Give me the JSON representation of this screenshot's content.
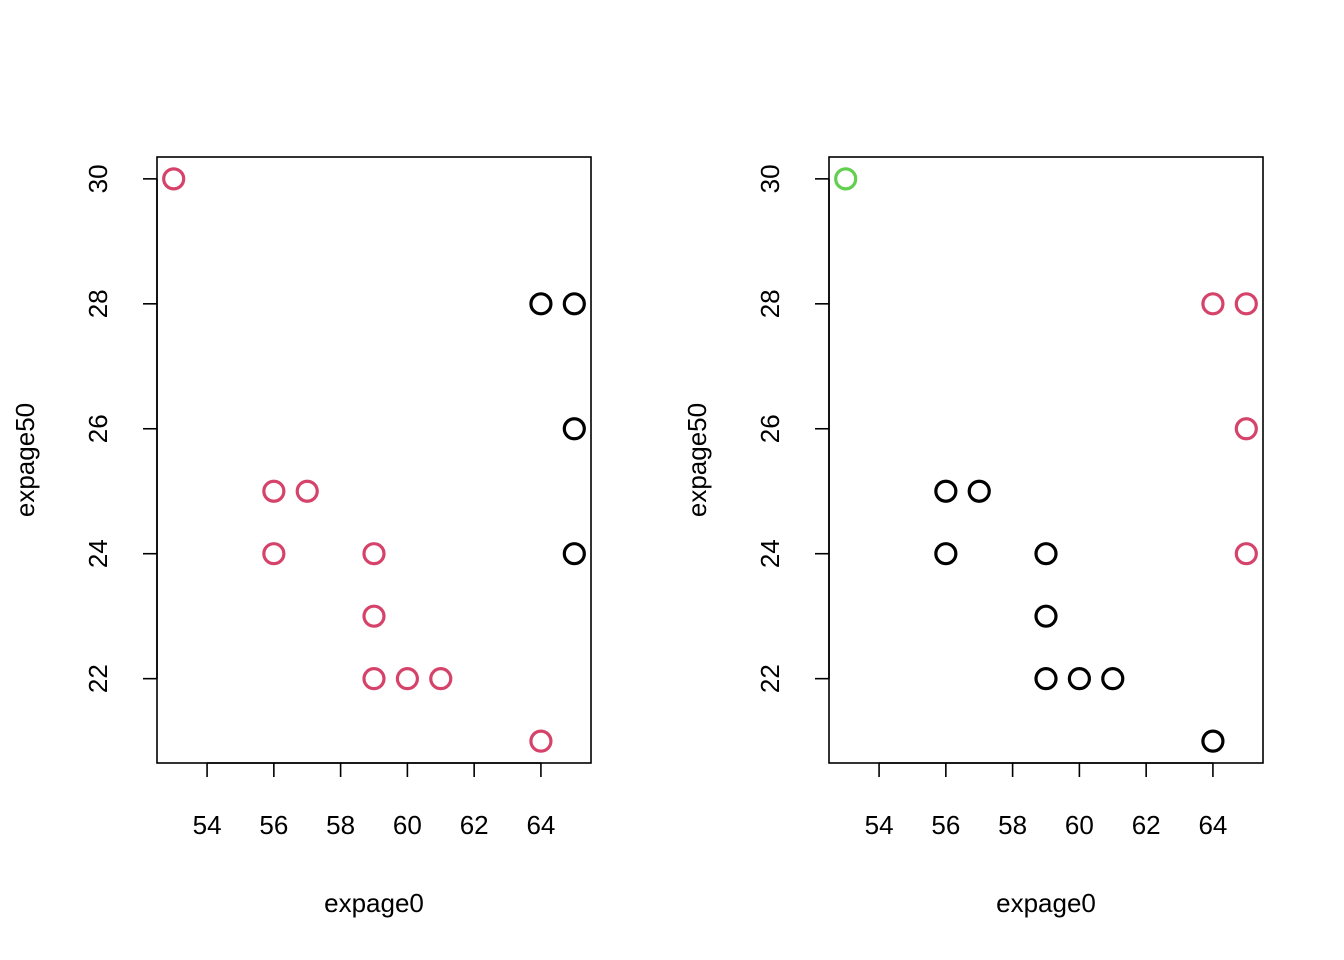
{
  "chart_data": [
    {
      "type": "scatter",
      "title": "",
      "xlabel": "expage0",
      "ylabel": "expage50",
      "xlim": [
        52.5,
        65.5
      ],
      "ylim": [
        20.65,
        30.35
      ],
      "xticks": [
        54,
        56,
        58,
        60,
        62,
        64
      ],
      "yticks": [
        22,
        24,
        26,
        28,
        30
      ],
      "xtick_labels": [
        "54",
        "56",
        "58",
        "60",
        "62",
        "64"
      ],
      "ytick_labels": [
        "22",
        "24",
        "26",
        "28",
        "30"
      ],
      "points": [
        {
          "x": 53,
          "y": 30,
          "color": "#d6436a"
        },
        {
          "x": 64,
          "y": 28,
          "color": "#000000"
        },
        {
          "x": 65,
          "y": 28,
          "color": "#000000"
        },
        {
          "x": 65,
          "y": 26,
          "color": "#000000"
        },
        {
          "x": 56,
          "y": 25,
          "color": "#d6436a"
        },
        {
          "x": 57,
          "y": 25,
          "color": "#d6436a"
        },
        {
          "x": 56,
          "y": 24,
          "color": "#d6436a"
        },
        {
          "x": 59,
          "y": 24,
          "color": "#d6436a"
        },
        {
          "x": 65,
          "y": 24,
          "color": "#000000"
        },
        {
          "x": 59,
          "y": 23,
          "color": "#d6436a"
        },
        {
          "x": 59,
          "y": 22,
          "color": "#d6436a"
        },
        {
          "x": 60,
          "y": 22,
          "color": "#d6436a"
        },
        {
          "x": 61,
          "y": 22,
          "color": "#d6436a"
        },
        {
          "x": 64,
          "y": 21,
          "color": "#d6436a"
        }
      ]
    },
    {
      "type": "scatter",
      "title": "",
      "xlabel": "expage0",
      "ylabel": "expage50",
      "xlim": [
        52.5,
        65.5
      ],
      "ylim": [
        20.65,
        30.35
      ],
      "xticks": [
        54,
        56,
        58,
        60,
        62,
        64
      ],
      "yticks": [
        22,
        24,
        26,
        28,
        30
      ],
      "xtick_labels": [
        "54",
        "56",
        "58",
        "60",
        "62",
        "64"
      ],
      "ytick_labels": [
        "22",
        "24",
        "26",
        "28",
        "30"
      ],
      "points": [
        {
          "x": 53,
          "y": 30,
          "color": "#61d04f"
        },
        {
          "x": 64,
          "y": 28,
          "color": "#d6436a"
        },
        {
          "x": 65,
          "y": 28,
          "color": "#d6436a"
        },
        {
          "x": 65,
          "y": 26,
          "color": "#d6436a"
        },
        {
          "x": 56,
          "y": 25,
          "color": "#000000"
        },
        {
          "x": 57,
          "y": 25,
          "color": "#000000"
        },
        {
          "x": 56,
          "y": 24,
          "color": "#000000"
        },
        {
          "x": 59,
          "y": 24,
          "color": "#000000"
        },
        {
          "x": 65,
          "y": 24,
          "color": "#d6436a"
        },
        {
          "x": 59,
          "y": 23,
          "color": "#000000"
        },
        {
          "x": 59,
          "y": 22,
          "color": "#000000"
        },
        {
          "x": 60,
          "y": 22,
          "color": "#000000"
        },
        {
          "x": 61,
          "y": 22,
          "color": "#000000"
        },
        {
          "x": 64,
          "y": 21,
          "color": "#000000"
        }
      ]
    }
  ]
}
